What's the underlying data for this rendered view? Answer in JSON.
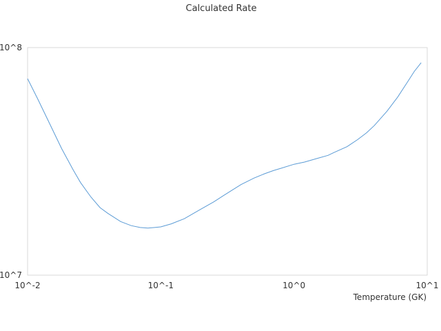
{
  "chart_data": {
    "type": "line",
    "title": "Calculated Rate",
    "xlabel": "Temperature (GK)",
    "ylabel": "",
    "xscale": "log",
    "yscale": "log",
    "xlim": [
      0.01,
      10
    ],
    "ylim": [
      10000000,
      100000000
    ],
    "x_ticks": [
      "10^-2",
      "10^-1",
      "10^0",
      "10^1"
    ],
    "y_ticks": [
      "10^7",
      "10^8"
    ],
    "grid": false,
    "legend": "none",
    "colors": {
      "line": "#5b9bd5",
      "axis": "#d9d9d9"
    },
    "series": [
      {
        "x": [
          0.01,
          0.012,
          0.015,
          0.018,
          0.022,
          0.025,
          0.03,
          0.035,
          0.04,
          0.05,
          0.06,
          0.07,
          0.08,
          0.09,
          0.1,
          0.12,
          0.15,
          0.2,
          0.25,
          0.3,
          0.4,
          0.5,
          0.6,
          0.7,
          0.8,
          1.0,
          1.2,
          1.5,
          1.8,
          2.0,
          2.5,
          3.0,
          3.5,
          4.0,
          5.0,
          6.0,
          7.0,
          8.0,
          9.0
        ],
        "values": [
          73000000,
          59000000,
          45000000,
          36000000,
          29000000,
          25500000,
          22000000,
          19800000,
          18700000,
          17200000,
          16500000,
          16200000,
          16100000,
          16200000,
          16300000,
          16800000,
          17700000,
          19500000,
          21000000,
          22500000,
          25000000,
          26700000,
          27900000,
          28800000,
          29500000,
          30700000,
          31400000,
          32600000,
          33600000,
          34600000,
          36700000,
          39400000,
          42200000,
          45400000,
          52600000,
          60600000,
          69600000,
          78600000,
          85800000
        ]
      }
    ]
  }
}
